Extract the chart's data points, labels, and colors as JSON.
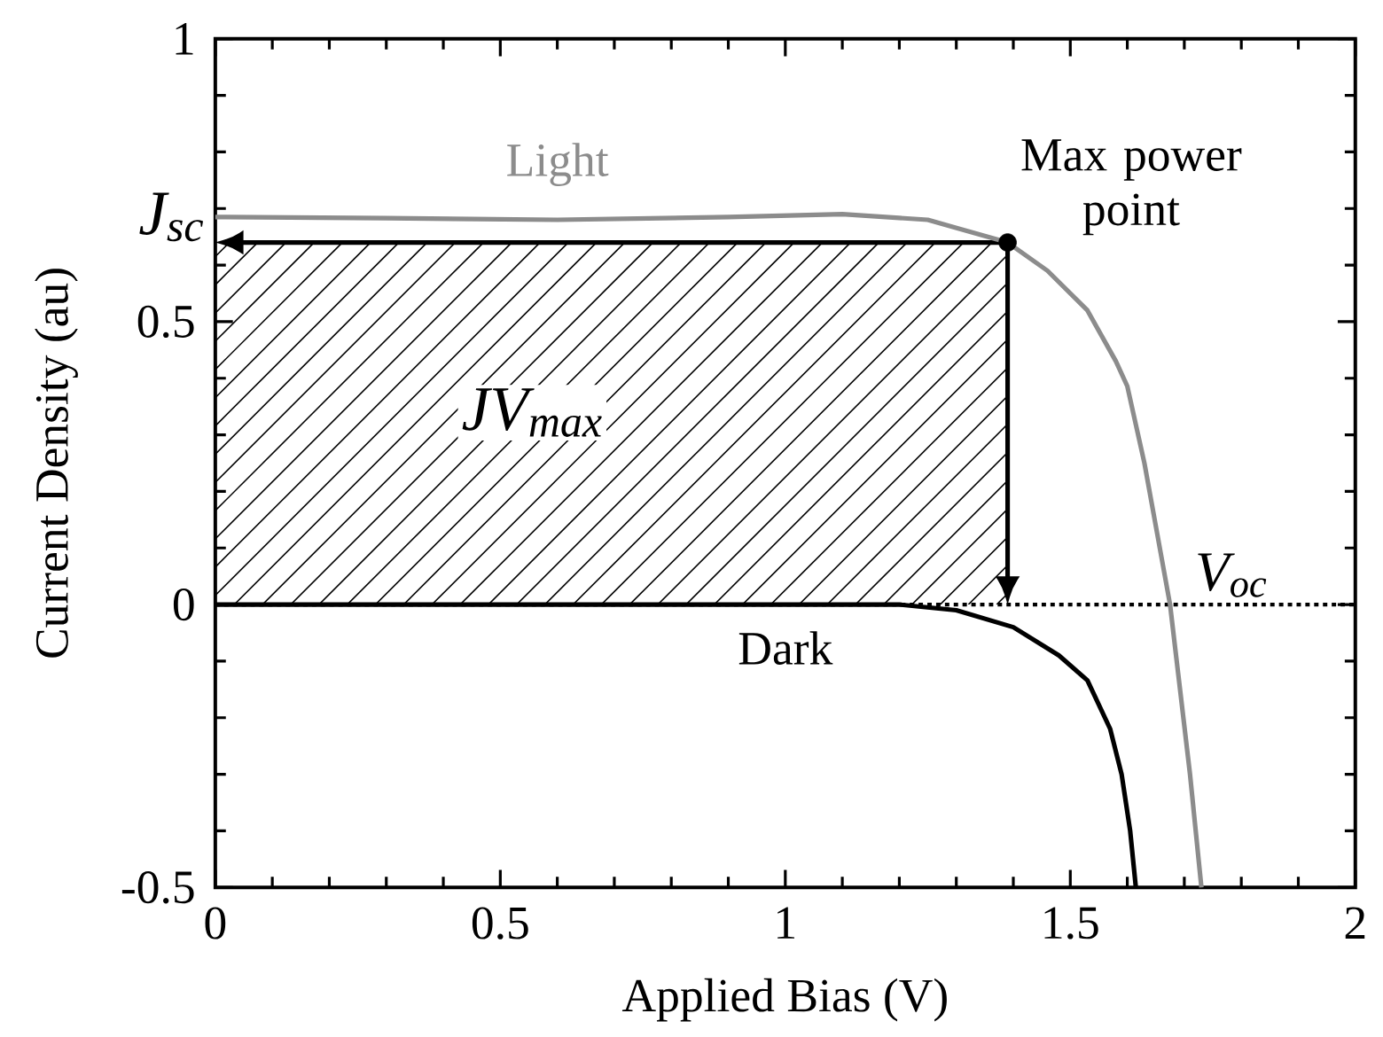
{
  "chart_data": {
    "type": "line",
    "xlabel": "Applied Bias (V)",
    "ylabel": "Current Density (au)",
    "xlim": [
      0,
      2
    ],
    "ylim": [
      -0.5,
      1
    ],
    "xticks": [
      0,
      0.5,
      1,
      1.5,
      2
    ],
    "yticks": [
      -0.5,
      0,
      0.5,
      1
    ],
    "grid": false,
    "marker": "none",
    "line_style": "solid",
    "series": [
      {
        "name": "Light",
        "color": "#8c8c8c",
        "x": [
          0,
          0.3,
          0.6,
          0.9,
          1.1,
          1.25,
          1.39,
          1.46,
          1.53,
          1.58,
          1.6,
          1.63,
          1.675,
          1.71,
          1.73
        ],
        "values": [
          0.685,
          0.683,
          0.68,
          0.685,
          0.69,
          0.68,
          0.64,
          0.59,
          0.52,
          0.43,
          0.386,
          0.25,
          0,
          -0.3,
          -0.5
        ]
      },
      {
        "name": "Dark",
        "color": "#000000",
        "x": [
          0,
          0.5,
          1,
          1.2,
          1.3,
          1.4,
          1.48,
          1.53,
          1.57,
          1.59,
          1.605,
          1.615
        ],
        "values": [
          0,
          0,
          0,
          0,
          -0.01,
          -0.04,
          -0.09,
          -0.134,
          -0.22,
          -0.3,
          -0.4,
          -0.5
        ]
      },
      {
        "type": "scatter",
        "marker": "circle",
        "color": "#000000",
        "x": [
          1.39
        ],
        "values": [
          0.64
        ]
      }
    ],
    "ref_lines": [
      {
        "axis": "y",
        "value": 0,
        "color": "#000000",
        "line_style": "dotted"
      }
    ],
    "annotations": [
      {
        "text": "J$_{sc}$",
        "x": 0,
        "y": 0.685
      },
      "JV$_{max}$",
      {
        "text": "V$_{oc}$",
        "x": 1.675,
        "y": 0
      },
      {
        "text": "Max power point",
        "x": 1.39,
        "y": 0.64
      }
    ]
  }
}
